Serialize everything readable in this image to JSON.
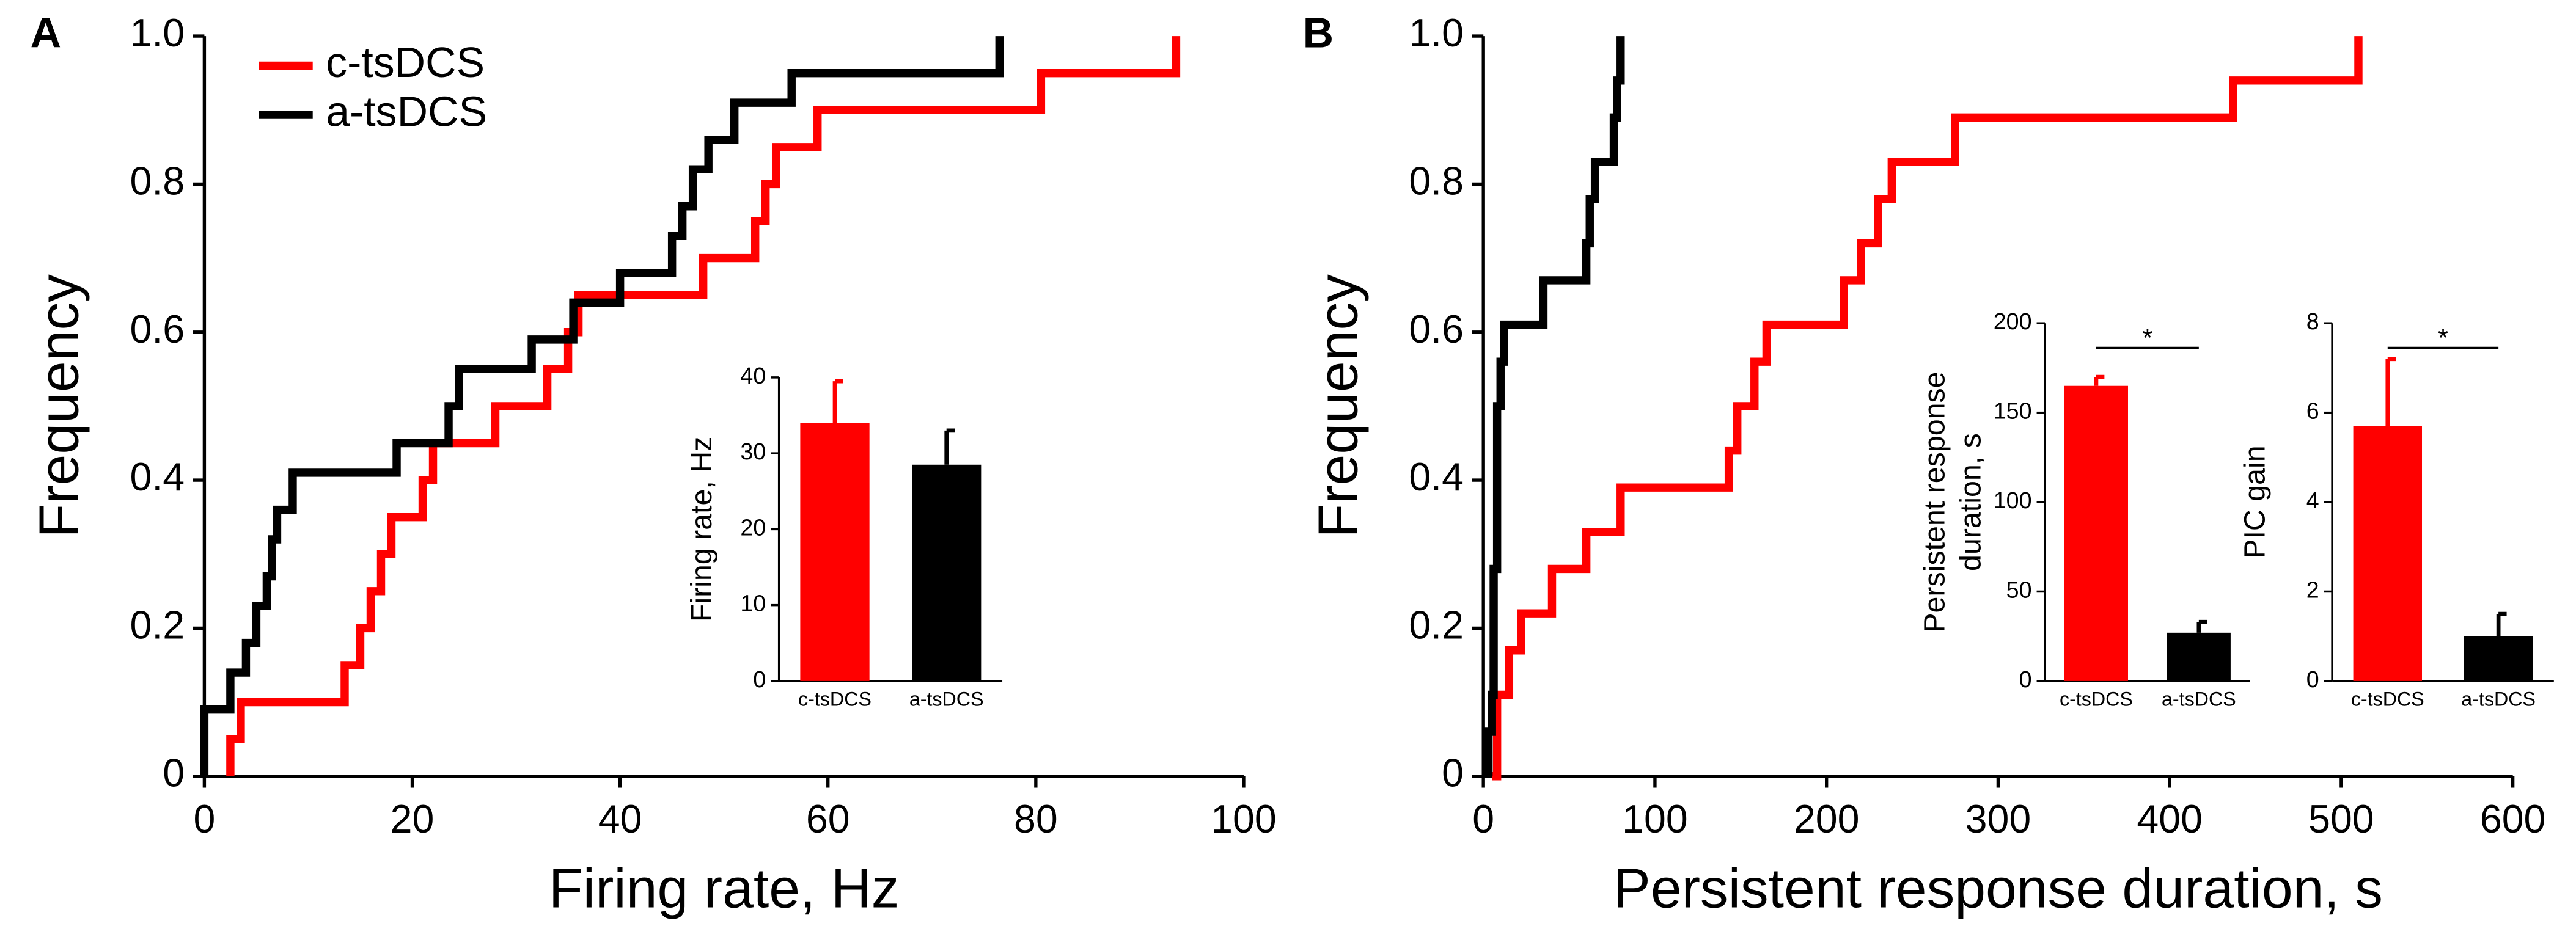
{
  "chart_data": [
    {
      "type": "step",
      "panel": "A",
      "xlabel": "Firing rate, Hz",
      "ylabel": "Frequency",
      "xlim": [
        0,
        100
      ],
      "xticks": [
        0,
        20,
        40,
        60,
        80,
        100
      ],
      "ylim": [
        0,
        1
      ],
      "yticks": [
        0,
        0.2,
        0.4,
        0.6,
        0.8,
        {
          "value": 1,
          "label": "1.0"
        }
      ],
      "legend": "upper left",
      "series": [
        {
          "name": "c-tsDCS",
          "color": "#ff0000",
          "x": [
            2.5,
            2.5,
            3.5,
            13.5,
            15,
            16,
            17,
            18,
            21,
            22,
            28,
            33,
            35,
            36,
            48,
            53,
            54,
            55,
            59,
            80.5,
            93.5
          ],
          "values": [
            0,
            0.05,
            0.1,
            0.15,
            0.2,
            0.25,
            0.3,
            0.35,
            0.4,
            0.45,
            0.5,
            0.55,
            0.6,
            0.65,
            0.7,
            0.75,
            0.8,
            0.85,
            0.9,
            0.95,
            1
          ]
        },
        {
          "name": "a-tsDCS",
          "color": "#000000",
          "x": [
            0,
            0,
            2.5,
            4,
            5,
            6,
            6.5,
            7,
            8.5,
            18.5,
            23.5,
            24.5,
            31.5,
            35.5,
            40,
            45,
            46,
            47,
            48.5,
            51,
            56.5,
            76.5
          ],
          "values": [
            0,
            0.09,
            0.14,
            0.18,
            0.23,
            0.27,
            0.32,
            0.36,
            0.41,
            0.45,
            0.5,
            0.55,
            0.59,
            0.64,
            0.68,
            0.73,
            0.77,
            0.82,
            0.86,
            0.91,
            0.95,
            1
          ]
        }
      ]
    },
    {
      "type": "bar",
      "ylabel": [
        "Firing rate, Hz"
      ],
      "categories": [
        "c-tsDCS",
        "a-tsDCS"
      ],
      "values": [
        34,
        28.5
      ],
      "errors": [
        5.5,
        4.5
      ],
      "colors": [
        "#ff0000",
        "#000000"
      ],
      "ylim": [
        0,
        40
      ],
      "yticks": [
        0,
        10,
        20,
        30,
        40
      ]
    },
    {
      "type": "step",
      "panel": "B",
      "xlabel": "Persistent response duration, s",
      "ylabel": "Frequency",
      "xlim": [
        0,
        600
      ],
      "xticks": [
        0,
        100,
        200,
        300,
        400,
        500,
        600
      ],
      "ylim": [
        0,
        1
      ],
      "yticks": [
        0,
        0.2,
        0.4,
        0.6,
        0.8,
        {
          "value": 1,
          "label": "1.0"
        }
      ],
      "series": [
        {
          "name": "c-tsDCS",
          "color": "#ff0000",
          "x": [
            5,
            8,
            15,
            22,
            40,
            60,
            80,
            143,
            148,
            158,
            165,
            210,
            220,
            230,
            238,
            275,
            437,
            510
          ],
          "values": [
            0,
            0.11,
            0.17,
            0.22,
            0.28,
            0.33,
            0.39,
            0.44,
            0.5,
            0.56,
            0.61,
            0.67,
            0.72,
            0.78,
            0.83,
            0.89,
            0.94,
            1
          ]
        },
        {
          "name": "a-tsDCS",
          "color": "#000000",
          "x": [
            3,
            3,
            5,
            6,
            8,
            10,
            12,
            35,
            60,
            62,
            65,
            76,
            78,
            80
          ],
          "values": [
            0,
            0.06,
            0.11,
            0.28,
            0.5,
            0.56,
            0.61,
            0.67,
            0.72,
            0.78,
            0.83,
            0.89,
            0.94,
            1
          ]
        }
      ]
    },
    {
      "type": "bar",
      "ylabel": [
        "Persistent response",
        "duration, s"
      ],
      "categories": [
        "c-tsDCS",
        "a-tsDCS"
      ],
      "values": [
        165,
        27
      ],
      "errors": [
        5,
        6
      ],
      "colors": [
        "#ff0000",
        "#000000"
      ],
      "ylim": [
        0,
        200
      ],
      "yticks": [
        0,
        50,
        100,
        150,
        200
      ],
      "annotation": "*"
    },
    {
      "type": "bar",
      "ylabel": [
        "PIC gain"
      ],
      "categories": [
        "c-tsDCS",
        "a-tsDCS"
      ],
      "values": [
        5.7,
        1.0
      ],
      "errors": [
        1.5,
        0.5
      ],
      "colors": [
        "#ff0000",
        "#000000"
      ],
      "ylim": [
        0,
        8
      ],
      "yticks": [
        0,
        2,
        4,
        6,
        8
      ],
      "annotation": "*"
    }
  ]
}
